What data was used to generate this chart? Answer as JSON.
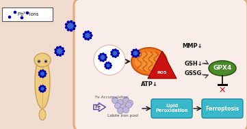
{
  "bg_color": "#f0ddd0",
  "cell_fill": "#f8ede8",
  "cell_edge": "#e8a878",
  "white_circle_fill": "#ffffff",
  "white_circle_edge": "#e0c0b0",
  "label_box_fill": "#ffffff",
  "label_box_edge": "#555555",
  "pb_label": "Pb²⁺ ions",
  "mmp_label": "MMP↓",
  "atp_label": "ATP↓",
  "gsh_label": "GSH↓",
  "gssg_label": "GSSG",
  "gpx4_label": "GPX4",
  "gpx4_fill": "#4a8a2a",
  "lipid_label": "Lipid\nPeroxidation",
  "lipid_fill": "#38b8c8",
  "ferroptosis_label": "Ferroptosis",
  "ferroptosis_fill": "#38b8c8",
  "ros_label": "ROS",
  "ros_fill": "#cc1111",
  "fe_acc_label": "Fe Accumulation",
  "labile_label": "Labile iron pool",
  "mito_fill": "#f07820",
  "mito_edge": "#c85008",
  "arrow_color": "#222222",
  "fe_arrow_color": "#6644aa",
  "mp_core": "#3366cc",
  "mp_dot": "#0000aa",
  "planarian_fill": "#f0cc80",
  "planarian_edge": "#c8a050",
  "labile_dot_fill": "#c0b8d8",
  "labile_dot_edge": "#9080b8"
}
